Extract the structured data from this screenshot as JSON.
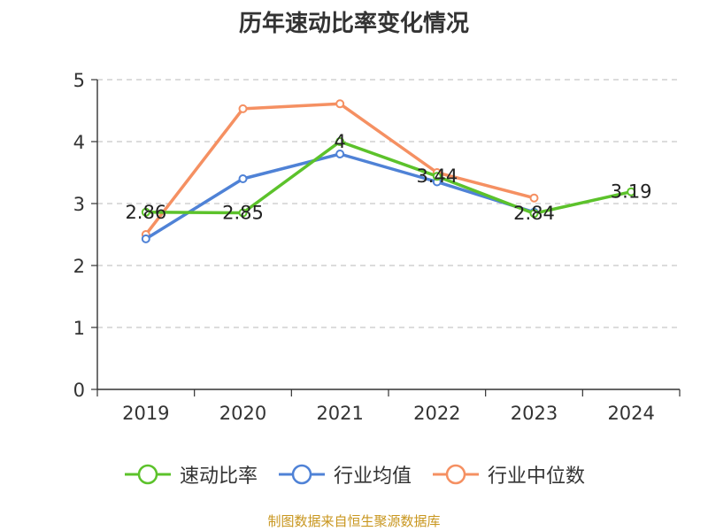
{
  "chart_data": {
    "type": "line",
    "title": "历年速动比率变化情况",
    "categories": [
      "2019",
      "2020",
      "2021",
      "2022",
      "2023",
      "2024"
    ],
    "ylim": [
      0,
      5
    ],
    "yticks": [
      0,
      1,
      2,
      3,
      4,
      5
    ],
    "grid": true,
    "legend_position": "bottom",
    "series": [
      {
        "name": "速动比率",
        "color": "#5cc22b",
        "values": [
          2.86,
          2.85,
          4,
          3.44,
          2.84,
          3.19
        ],
        "labels": [
          "2.86",
          "2.85",
          "4",
          "3.44",
          "2.84",
          "3.19"
        ]
      },
      {
        "name": "行业均值",
        "color": "#4f82d6",
        "values": [
          2.43,
          3.4,
          3.8,
          3.35,
          2.86,
          null
        ]
      },
      {
        "name": "行业中位数",
        "color": "#f59062",
        "values": [
          2.5,
          4.53,
          4.61,
          3.5,
          3.09,
          null
        ]
      }
    ]
  },
  "footer": {
    "source": "制图数据来自恒生聚源数据库"
  }
}
